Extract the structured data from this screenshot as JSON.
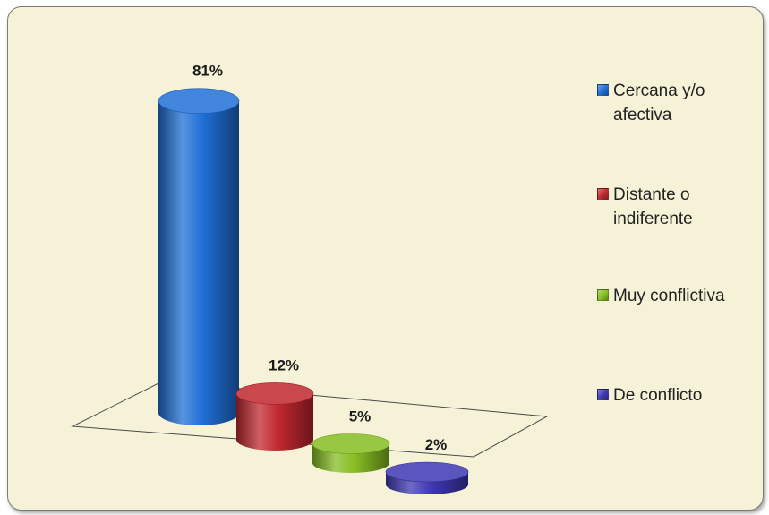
{
  "chart_data": {
    "type": "bar",
    "style": "3d-cylinder",
    "categories": [
      "Cercana y/o afectiva",
      "Distante o indiferente",
      "Muy conflictiva",
      "De conflicto"
    ],
    "values": [
      81,
      12,
      5,
      2
    ],
    "data_labels": [
      "81%",
      "12%",
      "5%",
      "2%"
    ],
    "unit": "%",
    "colors": [
      "#1f6fd6",
      "#c0282f",
      "#86be22",
      "#3e38b4"
    ],
    "legend": {
      "placement": "right",
      "entries": [
        {
          "label": "Cercana y/o afectiva",
          "color": "#1f6fd6"
        },
        {
          "label": "Distante o indiferente",
          "color": "#c0282f"
        },
        {
          "label": "Muy conflictiva",
          "color": "#86be22"
        },
        {
          "label": "De conflicto",
          "color": "#3e38b4"
        }
      ]
    },
    "title": "",
    "xlabel": "",
    "ylabel": "",
    "grid": false,
    "background": "#f5f2d7"
  }
}
